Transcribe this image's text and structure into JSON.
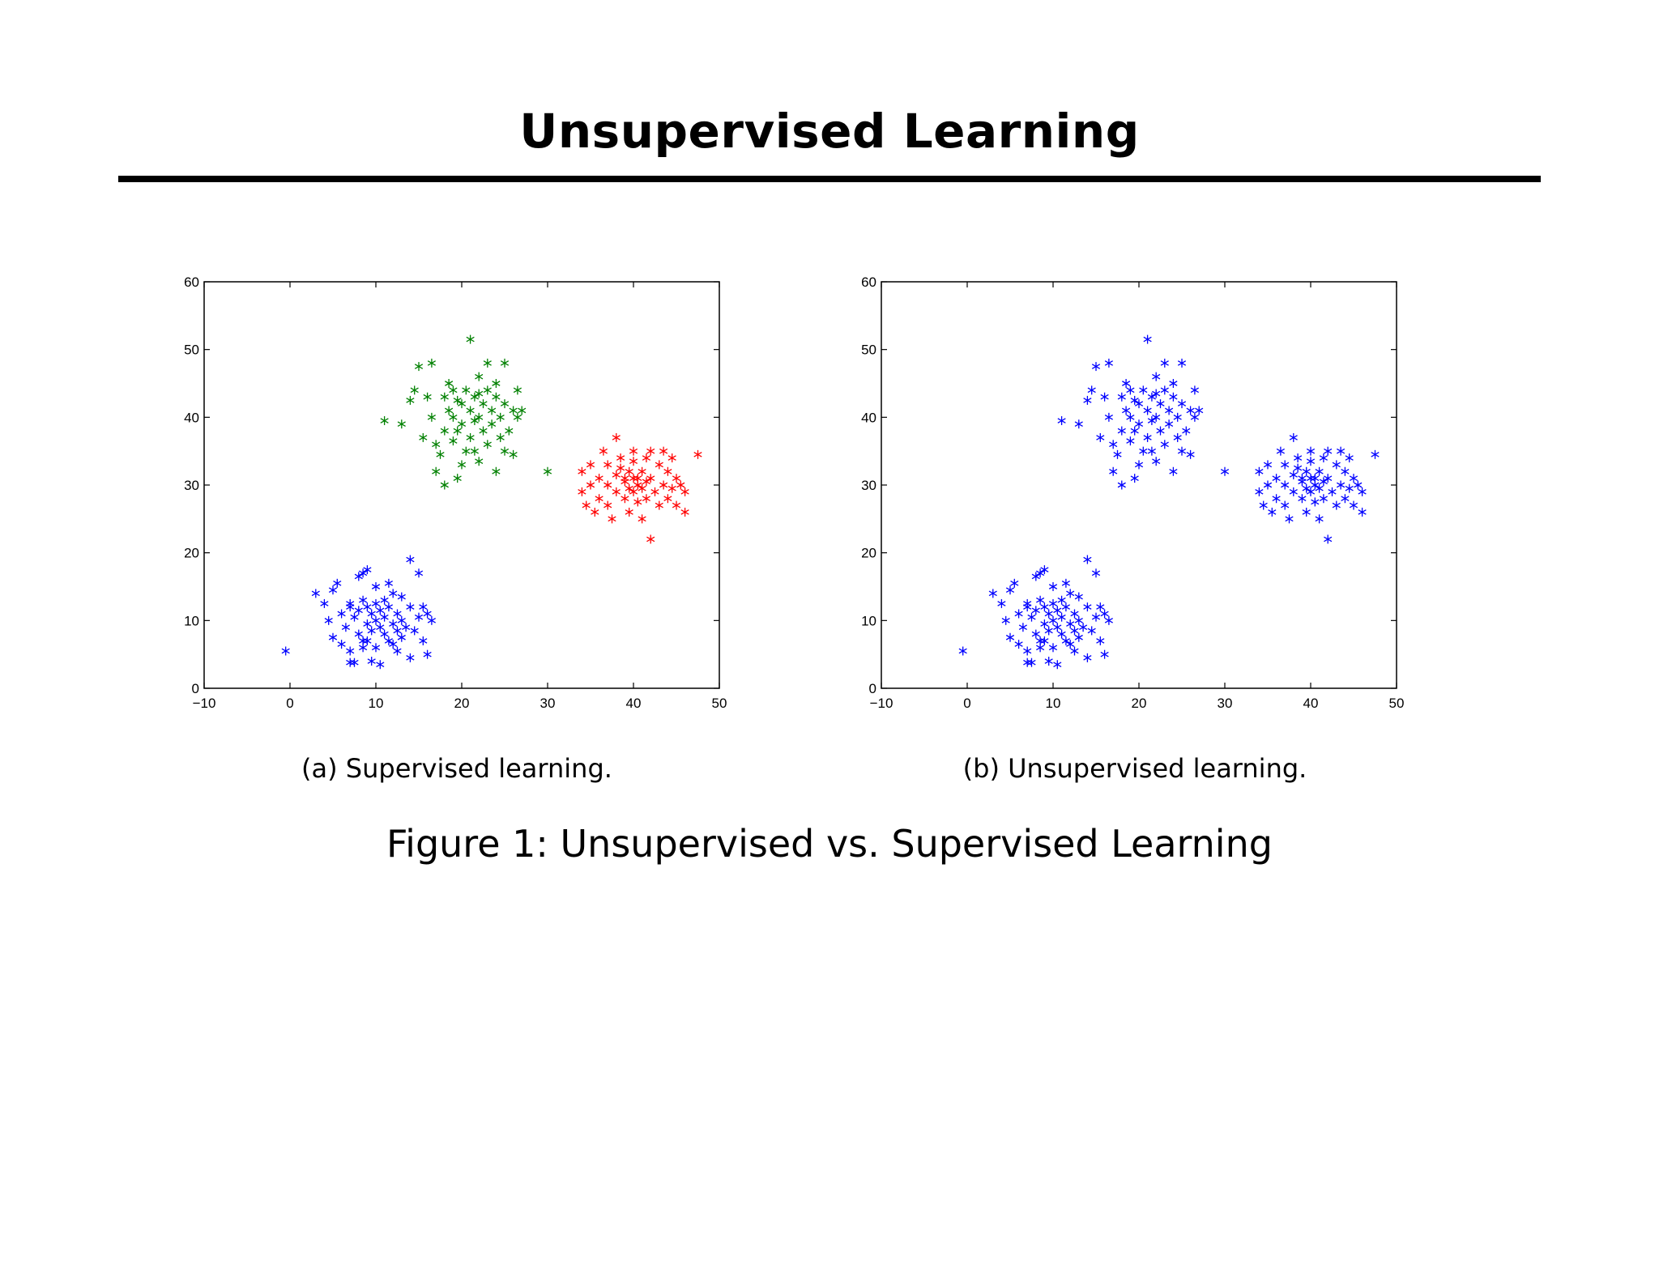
{
  "slide": {
    "title": "Unsupervised Learning",
    "figure_caption": "Figure 1: Unsupervised vs. Supervised Learning"
  },
  "chart_data": [
    {
      "type": "scatter",
      "caption": "(a) Supervised learning.",
      "marker": "asterisk",
      "xlim": [
        -10,
        50
      ],
      "ylim": [
        0,
        60
      ],
      "xticks": [
        -10,
        0,
        10,
        20,
        30,
        40,
        50
      ],
      "yticks": [
        0,
        10,
        20,
        30,
        40,
        50,
        60
      ],
      "xtick_labels": [
        "−10",
        "0",
        "10",
        "20",
        "30",
        "40",
        "50"
      ],
      "ytick_labels": [
        "0",
        "10",
        "20",
        "30",
        "40",
        "50",
        "60"
      ],
      "grid": false,
      "series": [
        {
          "color": "#0000ff",
          "points": [
            [
              -0.5,
              5.5
            ],
            [
              3,
              14
            ],
            [
              4,
              12.5
            ],
            [
              4.5,
              10
            ],
            [
              5,
              14.5
            ],
            [
              5,
              7.5
            ],
            [
              5.5,
              15.5
            ],
            [
              6,
              11
            ],
            [
              6,
              6.5
            ],
            [
              6.5,
              9
            ],
            [
              7,
              12
            ],
            [
              7,
              5.5
            ],
            [
              7,
              3.8
            ],
            [
              7.5,
              10.5
            ],
            [
              7.5,
              3.8
            ],
            [
              8,
              11.5
            ],
            [
              8,
              8
            ],
            [
              8,
              16.5
            ],
            [
              8.5,
              13
            ],
            [
              8.5,
              7
            ],
            [
              8.5,
              17
            ],
            [
              9,
              17.5
            ],
            [
              9,
              9.5
            ],
            [
              9,
              12
            ],
            [
              9.5,
              8.5
            ],
            [
              9.5,
              11
            ],
            [
              9.5,
              4
            ],
            [
              10,
              10
            ],
            [
              10,
              12.5
            ],
            [
              10,
              6
            ],
            [
              10.5,
              9
            ],
            [
              10.5,
              11.5
            ],
            [
              10.5,
              3.5
            ],
            [
              11,
              13
            ],
            [
              11,
              8
            ],
            [
              11,
              10.5
            ],
            [
              11.5,
              7
            ],
            [
              11.5,
              12
            ],
            [
              12,
              9.5
            ],
            [
              12,
              6.5
            ],
            [
              12,
              14
            ],
            [
              12.5,
              11
            ],
            [
              12.5,
              8.5
            ],
            [
              13,
              10
            ],
            [
              13,
              13.5
            ],
            [
              13,
              7.5
            ],
            [
              13.5,
              9
            ],
            [
              14,
              12
            ],
            [
              14,
              19
            ],
            [
              14,
              4.5
            ],
            [
              14.5,
              8.5
            ],
            [
              15,
              10.5
            ],
            [
              15,
              17
            ],
            [
              15.5,
              12
            ],
            [
              15.5,
              7
            ],
            [
              16,
              11
            ],
            [
              16,
              5
            ],
            [
              16.5,
              10
            ],
            [
              7,
              12.5
            ],
            [
              8.5,
              6
            ],
            [
              10,
              15
            ],
            [
              11.5,
              15.5
            ],
            [
              9,
              7
            ],
            [
              12.5,
              5.5
            ]
          ]
        },
        {
          "color": "#008000",
          "points": [
            [
              11,
              39.5
            ],
            [
              13,
              39
            ],
            [
              14,
              42.5
            ],
            [
              14.5,
              44
            ],
            [
              15,
              47.5
            ],
            [
              15.5,
              37
            ],
            [
              16,
              43
            ],
            [
              16.5,
              40
            ],
            [
              16.5,
              48
            ],
            [
              17,
              36
            ],
            [
              17,
              32
            ],
            [
              17.5,
              34.5
            ],
            [
              18,
              43
            ],
            [
              18,
              38
            ],
            [
              18,
              30
            ],
            [
              18.5,
              41
            ],
            [
              19,
              44
            ],
            [
              19,
              36.5
            ],
            [
              19,
              40
            ],
            [
              19.5,
              38
            ],
            [
              19.5,
              31
            ],
            [
              20,
              42
            ],
            [
              20,
              39
            ],
            [
              20.5,
              44
            ],
            [
              20.5,
              35
            ],
            [
              21,
              41
            ],
            [
              21,
              37
            ],
            [
              21,
              51.5
            ],
            [
              21.5,
              43
            ],
            [
              21.5,
              39.5
            ],
            [
              22,
              40
            ],
            [
              22,
              46
            ],
            [
              22,
              33.5
            ],
            [
              22.5,
              42
            ],
            [
              22.5,
              38
            ],
            [
              23,
              44
            ],
            [
              23,
              36
            ],
            [
              23,
              48
            ],
            [
              23.5,
              41
            ],
            [
              23.5,
              39
            ],
            [
              24,
              43
            ],
            [
              24,
              32
            ],
            [
              24,
              45
            ],
            [
              24.5,
              40
            ],
            [
              24.5,
              37
            ],
            [
              25,
              42
            ],
            [
              25,
              35
            ],
            [
              25,
              48
            ],
            [
              25.5,
              38
            ],
            [
              26,
              41
            ],
            [
              26,
              34.5
            ],
            [
              26.5,
              44
            ],
            [
              26.5,
              40
            ],
            [
              27,
              41
            ],
            [
              30,
              32
            ],
            [
              18.5,
              45
            ],
            [
              20,
              33
            ],
            [
              21.5,
              35
            ],
            [
              22,
              43.5
            ],
            [
              19.5,
              42.5
            ]
          ]
        },
        {
          "color": "#ff0000",
          "points": [
            [
              34,
              32
            ],
            [
              34,
              29
            ],
            [
              34.5,
              27
            ],
            [
              35,
              33
            ],
            [
              35,
              30
            ],
            [
              35.5,
              26
            ],
            [
              36,
              31
            ],
            [
              36,
              28
            ],
            [
              36.5,
              35
            ],
            [
              37,
              30
            ],
            [
              37,
              33
            ],
            [
              37,
              27
            ],
            [
              37.5,
              25
            ],
            [
              38,
              31.5
            ],
            [
              38,
              29
            ],
            [
              38,
              37
            ],
            [
              38.5,
              34
            ],
            [
              39,
              30.5
            ],
            [
              39,
              28
            ],
            [
              39.5,
              32
            ],
            [
              39.5,
              26
            ],
            [
              40,
              31
            ],
            [
              40,
              29
            ],
            [
              40,
              35
            ],
            [
              40,
              33.5
            ],
            [
              40.5,
              30
            ],
            [
              40.5,
              27.5
            ],
            [
              41,
              32
            ],
            [
              41,
              29.5
            ],
            [
              41,
              25
            ],
            [
              41.5,
              34
            ],
            [
              41.5,
              28
            ],
            [
              42,
              31
            ],
            [
              42,
              22
            ],
            [
              42,
              35
            ],
            [
              42.5,
              29
            ],
            [
              43,
              33
            ],
            [
              43,
              27
            ],
            [
              43.5,
              30
            ],
            [
              43.5,
              35
            ],
            [
              44,
              32
            ],
            [
              44,
              28
            ],
            [
              44.5,
              34
            ],
            [
              44.5,
              29.5
            ],
            [
              45,
              31
            ],
            [
              45,
              27
            ],
            [
              45.5,
              30
            ],
            [
              46,
              26
            ],
            [
              46,
              29
            ],
            [
              47.5,
              34.5
            ],
            [
              39,
              31
            ],
            [
              40.5,
              31
            ],
            [
              41.5,
              30.5
            ],
            [
              38.5,
              32.5
            ],
            [
              39.5,
              29.5
            ]
          ]
        }
      ]
    },
    {
      "type": "scatter",
      "caption": "(b) Unsupervised learning.",
      "marker": "asterisk",
      "xlim": [
        -10,
        50
      ],
      "ylim": [
        0,
        60
      ],
      "xticks": [
        -10,
        0,
        10,
        20,
        30,
        40,
        50
      ],
      "yticks": [
        0,
        10,
        20,
        30,
        40,
        50,
        60
      ],
      "xtick_labels": [
        "−10",
        "0",
        "10",
        "20",
        "30",
        "40",
        "50"
      ],
      "ytick_labels": [
        "0",
        "10",
        "20",
        "30",
        "40",
        "50",
        "60"
      ],
      "grid": false,
      "series": [
        {
          "color": "#0000ff",
          "points": "same points as (a), all in blue"
        }
      ]
    }
  ]
}
